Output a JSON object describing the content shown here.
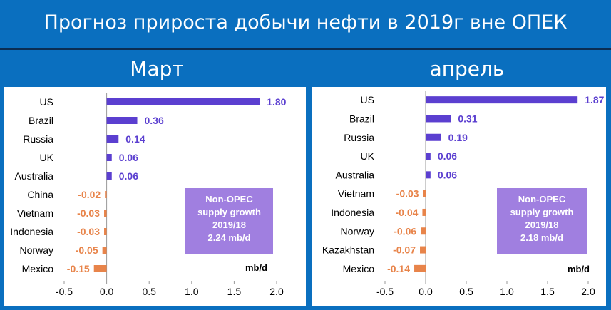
{
  "title": "Прогноз прироста добычи нефти в 2019г вне ОПЕК",
  "colors": {
    "positive": "#5b3fd0",
    "negative": "#e8844a",
    "box": "#a07fe0"
  },
  "chart_data": [
    {
      "type": "bar",
      "month": "Март",
      "categories": [
        "US",
        "Brazil",
        "Russia",
        "UK",
        "Australia",
        "China",
        "Vietnam",
        "Indonesia",
        "Norway",
        "Mexico"
      ],
      "values": [
        1.8,
        0.36,
        0.14,
        0.06,
        0.06,
        -0.02,
        -0.03,
        -0.03,
        -0.05,
        -0.15
      ],
      "value_labels": [
        "1.80",
        "0.36",
        "0.14",
        "0.06",
        "0.06",
        "-0.02",
        "-0.03",
        "-0.03",
        "-0.05",
        "-0.15"
      ],
      "xlim": [
        -0.5,
        2.0
      ],
      "xticks": [
        "-0.5",
        "0.0",
        "0.5",
        "1.0",
        "1.5",
        "2.0"
      ],
      "unit": "mb/d",
      "annotation": [
        "Non-OPEC",
        "supply growth",
        "2019/18",
        "2.24 mb/d"
      ]
    },
    {
      "type": "bar",
      "month": "апрель",
      "categories": [
        "US",
        "Brazil",
        "Russia",
        "UK",
        "Australia",
        "Vietnam",
        "Indonesia",
        "Norway",
        "Kazakhstan",
        "Mexico"
      ],
      "values": [
        1.87,
        0.31,
        0.19,
        0.06,
        0.06,
        -0.03,
        -0.04,
        -0.06,
        -0.07,
        -0.14
      ],
      "value_labels": [
        "1.87",
        "0.31",
        "0.19",
        "0.06",
        "0.06",
        "-0.03",
        "-0.04",
        "-0.06",
        "-0.07",
        "-0.14"
      ],
      "xlim": [
        -0.5,
        2.0
      ],
      "xticks": [
        "-0.5",
        "0.0",
        "0.5",
        "1.0",
        "1.5",
        "2.0"
      ],
      "unit": "mb/d",
      "annotation": [
        "Non-OPEC",
        "supply growth",
        "2019/18",
        "2.18 mb/d"
      ]
    }
  ]
}
